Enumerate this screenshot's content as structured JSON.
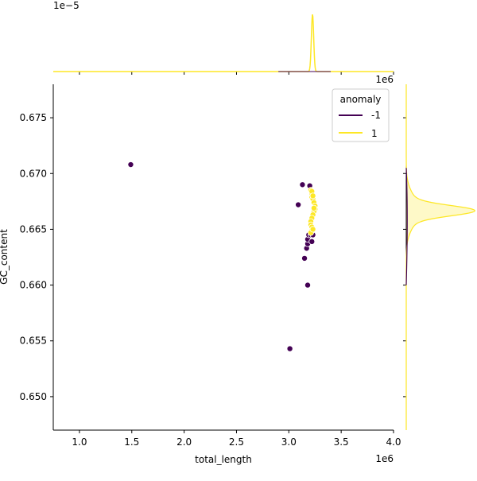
{
  "chart_data": {
    "type": "scatter",
    "xlabel": "total_length",
    "ylabel": "GC_content",
    "x_offset_label": "1e6",
    "xlim": [
      0.75,
      4.0
    ],
    "ylim": [
      0.647,
      0.678
    ],
    "x_ticks": [
      1.0,
      1.5,
      2.0,
      2.5,
      3.0,
      3.5,
      4.0
    ],
    "x_tick_labels": [
      "1.0",
      "1.5",
      "2.0",
      "2.5",
      "3.0",
      "3.5",
      "4.0"
    ],
    "y_ticks": [
      0.65,
      0.655,
      0.66,
      0.665,
      0.67,
      0.675
    ],
    "y_tick_labels": [
      "0.650",
      "0.655",
      "0.660",
      "0.665",
      "0.670",
      "0.675"
    ],
    "legend": {
      "title": "anomaly",
      "placement": "top-right",
      "entries": [
        {
          "label": "-1",
          "color": "#440154"
        },
        {
          "label": "1",
          "color": "#fde725"
        }
      ]
    },
    "top_marginal": {
      "offset_label": "1e−5",
      "right_offset_label": "1e6"
    },
    "series": [
      {
        "name": "-1",
        "color": "#440154",
        "points": [
          [
            1.49,
            0.6708
          ],
          [
            3.01,
            0.6543
          ],
          [
            3.18,
            0.66
          ],
          [
            3.15,
            0.6624
          ],
          [
            3.17,
            0.6633
          ],
          [
            3.18,
            0.6637
          ],
          [
            3.18,
            0.6641
          ],
          [
            3.19,
            0.6645
          ],
          [
            3.22,
            0.6639
          ],
          [
            3.21,
            0.6645
          ],
          [
            3.23,
            0.6645
          ],
          [
            3.09,
            0.6672
          ],
          [
            3.13,
            0.669
          ],
          [
            3.2,
            0.6689
          ]
        ]
      },
      {
        "name": "1",
        "color": "#fde725",
        "points": [
          [
            3.21,
            0.6685
          ],
          [
            3.22,
            0.6682
          ],
          [
            3.22,
            0.6679
          ],
          [
            3.23,
            0.6677
          ],
          [
            3.24,
            0.6674
          ],
          [
            3.25,
            0.6671
          ],
          [
            3.25,
            0.6668
          ],
          [
            3.24,
            0.6666
          ],
          [
            3.23,
            0.6663
          ],
          [
            3.22,
            0.666
          ],
          [
            3.21,
            0.6657
          ],
          [
            3.21,
            0.6654
          ],
          [
            3.22,
            0.6652
          ],
          [
            3.22,
            0.6649
          ],
          [
            3.21,
            0.6647
          ],
          [
            3.22,
            0.6684
          ],
          [
            3.23,
            0.668
          ],
          [
            3.24,
            0.6669
          ],
          [
            3.23,
            0.665
          ]
        ]
      }
    ]
  }
}
